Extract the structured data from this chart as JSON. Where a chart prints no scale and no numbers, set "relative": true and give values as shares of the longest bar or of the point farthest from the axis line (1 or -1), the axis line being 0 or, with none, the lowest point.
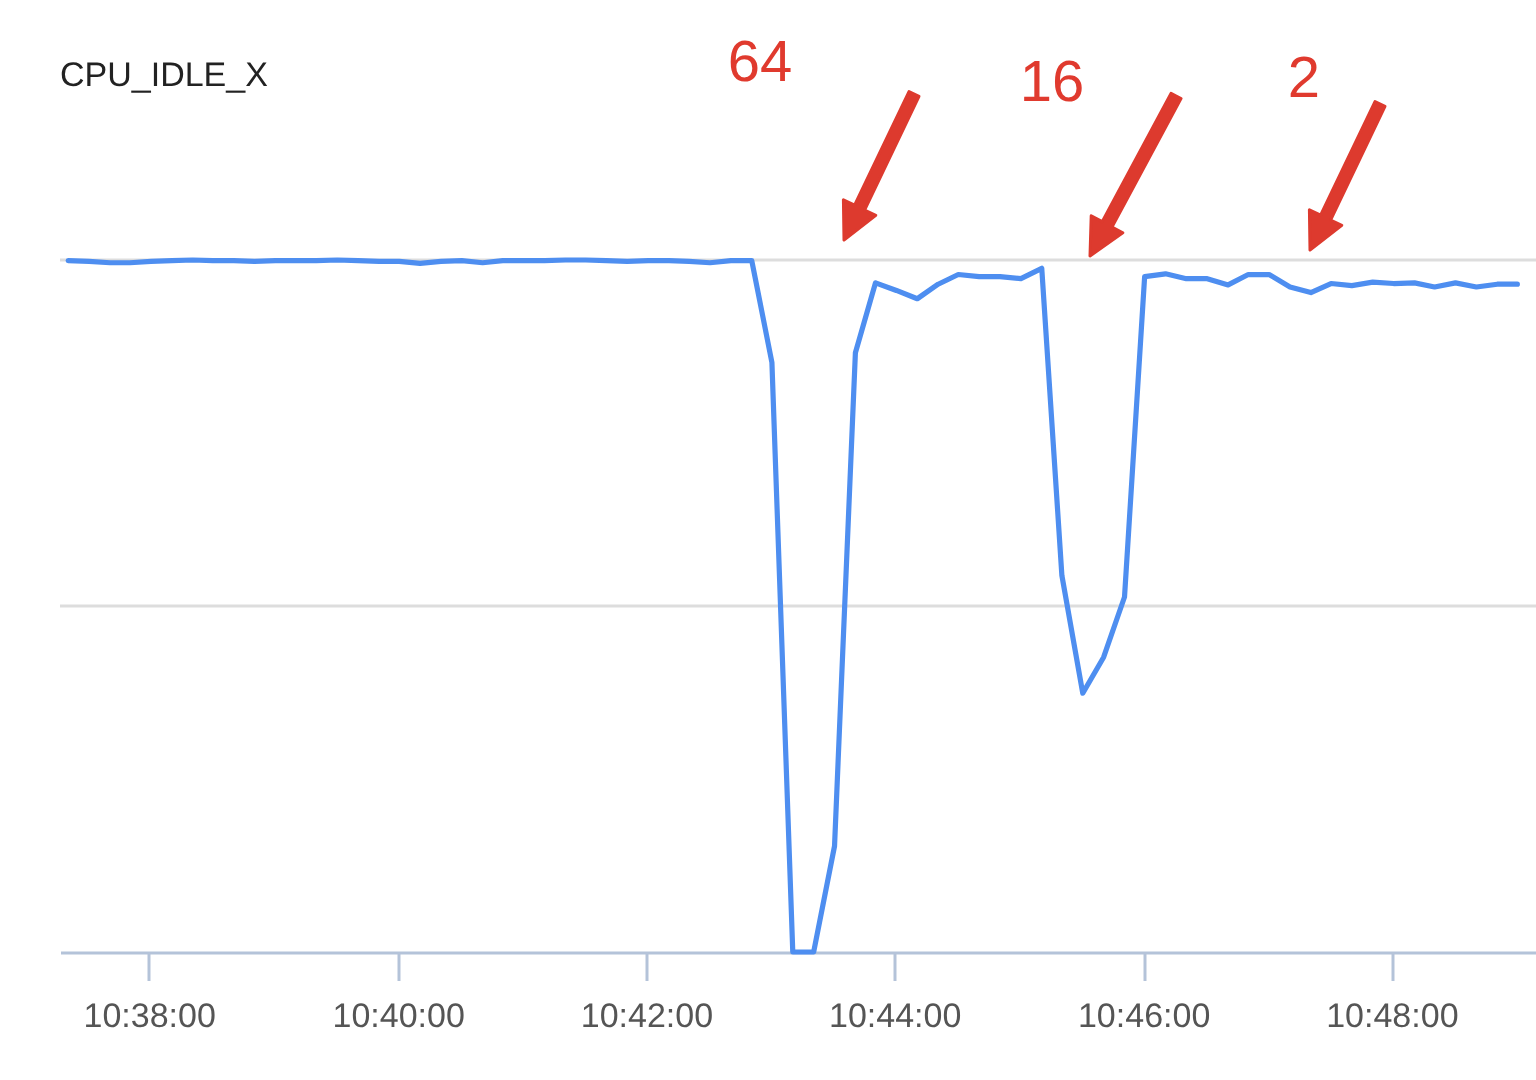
{
  "chart_data": {
    "type": "line",
    "title": "CPU_IDLE_X",
    "relative": true,
    "x": [
      10.6225,
      10.6253,
      10.6281,
      10.6308,
      10.6336,
      10.6364,
      10.6392,
      10.6419,
      10.6447,
      10.6475,
      10.6503,
      10.6531,
      10.6558,
      10.6586,
      10.6614,
      10.6642,
      10.6669,
      10.6697,
      10.6725,
      10.6753,
      10.6781,
      10.6808,
      10.6836,
      10.6864,
      10.6892,
      10.6919,
      10.6947,
      10.6975,
      10.7003,
      10.7031,
      10.7058,
      10.7086,
      10.7114,
      10.7142,
      10.7169,
      10.7197,
      10.7225,
      10.7253,
      10.7281,
      10.7308,
      10.7336,
      10.7364,
      10.7392,
      10.7419,
      10.7447,
      10.7475,
      10.7503,
      10.7531,
      10.7558,
      10.7586,
      10.7614,
      10.7642,
      10.7669,
      10.7697,
      10.7725,
      10.7753,
      10.7781,
      10.7808,
      10.7836,
      10.7864,
      10.7892,
      10.7919,
      10.7947,
      10.7975,
      10.8003,
      10.8031,
      10.8058,
      10.8086,
      10.8114,
      10.8142,
      10.8169
    ],
    "series": [
      {
        "color": "#4e8ef0",
        "values": [
          0.999,
          0.998,
          0.996,
          0.996,
          0.998,
          0.999,
          1.0,
          0.999,
          0.999,
          0.998,
          0.999,
          0.999,
          0.999,
          1.0,
          0.999,
          0.998,
          0.998,
          0.995,
          0.998,
          0.999,
          0.996,
          0.999,
          0.999,
          0.999,
          1.0,
          1.0,
          0.999,
          0.998,
          0.999,
          0.999,
          0.998,
          0.996,
          0.999,
          0.999,
          0.852,
          0,
          0,
          0.153,
          0.866,
          0.967,
          0.956,
          0.944,
          0.965,
          0.979,
          0.976,
          0.976,
          0.973,
          0.988,
          0.544,
          0.374,
          0.426,
          0.513,
          0.976,
          0.98,
          0.973,
          0.973,
          0.964,
          0.979,
          0.979,
          0.961,
          0.953,
          0.966,
          0.963,
          0.968,
          0.966,
          0.967,
          0.961,
          0.967,
          0.961,
          0.965,
          0.965
        ]
      }
    ],
    "xlim": [
      10.6214,
      10.8194
    ],
    "xticks": [
      {
        "value": 10.6333,
        "label": "10:38:00"
      },
      {
        "value": 10.6667,
        "label": "10:40:00"
      },
      {
        "value": 10.7,
        "label": "10:42:00"
      },
      {
        "value": 10.7333,
        "label": "10:44:00"
      },
      {
        "value": 10.7667,
        "label": "10:46:00"
      },
      {
        "value": 10.8,
        "label": "10:48:00"
      }
    ],
    "ref_lines": [
      {
        "axis": "y",
        "value": 0.5,
        "color": "#dddddd"
      },
      {
        "axis": "y",
        "value": 1,
        "color": "#dddddd"
      }
    ],
    "annotations": [
      "64",
      "16",
      "2"
    ]
  }
}
